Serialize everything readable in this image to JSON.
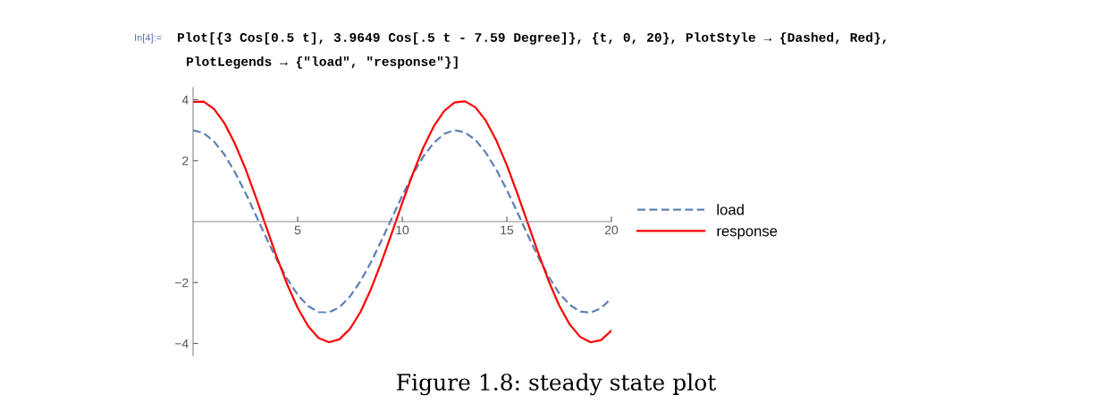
{
  "chart_data": {
    "type": "line",
    "x": [
      0,
      0.5,
      1,
      1.5,
      2,
      2.5,
      3,
      3.5,
      4,
      4.5,
      5,
      5.5,
      6,
      6.5,
      7,
      7.5,
      8,
      8.5,
      9,
      9.5,
      10,
      10.5,
      11,
      11.5,
      12,
      12.5,
      13,
      13.5,
      14,
      14.5,
      15,
      15.5,
      16,
      16.5,
      17,
      17.5,
      18,
      18.5,
      19,
      19.5,
      20
    ],
    "series": [
      {
        "name": "load",
        "color": "#5e81b5",
        "line_style": "dashed",
        "values": [
          3.0,
          2.91,
          2.63,
          2.2,
          1.62,
          0.95,
          0.21,
          -0.53,
          -1.25,
          -1.88,
          -2.4,
          -2.77,
          -2.97,
          -2.98,
          -2.81,
          -2.46,
          -1.96,
          -1.34,
          -0.63,
          0.11,
          0.85,
          1.54,
          2.13,
          2.58,
          2.88,
          3.0,
          2.93,
          2.68,
          2.26,
          1.7,
          1.04,
          0.31,
          -0.44,
          -1.16,
          -1.81,
          -2.35,
          -2.73,
          -2.95,
          -2.99,
          -2.84,
          -2.52
        ]
      },
      {
        "name": "response",
        "color": "#ff0000",
        "line_style": "solid",
        "values": [
          3.93,
          3.94,
          3.7,
          3.23,
          2.56,
          1.74,
          0.8,
          -0.18,
          -1.16,
          -2.06,
          -2.83,
          -3.43,
          -3.82,
          -3.96,
          -3.86,
          -3.52,
          -2.97,
          -2.22,
          -1.34,
          -0.38,
          0.61,
          1.56,
          2.42,
          3.12,
          3.63,
          3.91,
          3.95,
          3.75,
          3.31,
          2.66,
          1.85,
          0.93,
          -0.05,
          -1.03,
          -1.95,
          -2.75,
          -3.37,
          -3.78,
          -3.96,
          -3.89,
          -3.58
        ]
      }
    ],
    "xlim": [
      0,
      20
    ],
    "xticks": [
      5,
      10,
      15,
      20
    ],
    "ylim": [
      -4.4,
      4.4
    ],
    "yticks": [
      -4,
      -2,
      2,
      4
    ],
    "grid": false,
    "legend": "right",
    "marker": "none",
    "annotations": [
      "In[4]:=",
      "Plot[{3 Cos[0.5 t], 3.9649 Cos[.5 t - 7.59 Degree]}, {t, 0, 20}, PlotStyle → {Dashed, Red},",
      "PlotLegends → {\"load\", \"response\"}]",
      "Figure 1.8: steady state plot"
    ]
  }
}
